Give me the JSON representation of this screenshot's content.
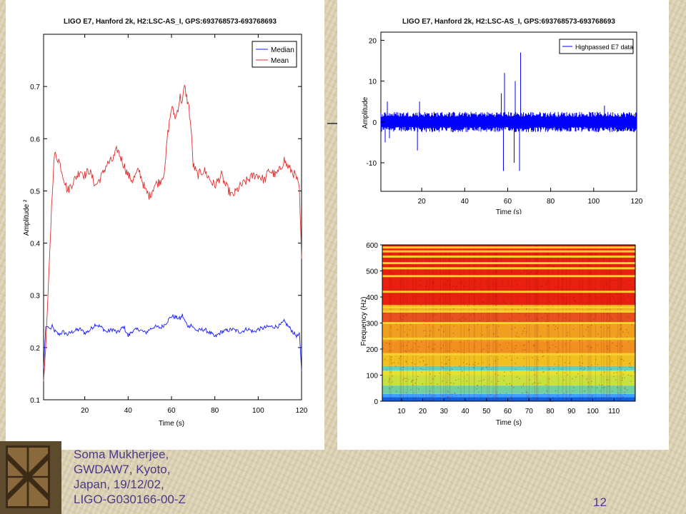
{
  "footer": {
    "lines": [
      "Soma Mukherjee,",
      "GWDAW7, Kyoto,",
      "Japan, 19/12/02,",
      "LIGO-G030166-00-Z"
    ],
    "page_number": "12"
  },
  "colors": {
    "median": "#1a1aff",
    "mean": "#e03030",
    "highpassed": "#0000ff",
    "background": "#ddd1b3",
    "footer_text": "#4a3a8a"
  },
  "chart_data": [
    {
      "type": "line",
      "title": "LIGO E7, Hanford 2k, H2:LSC-AS_I, GPS:693768573-693768693",
      "xlabel": "Time (s)",
      "ylabel": "Amplitude ²",
      "xlim": [
        1,
        120
      ],
      "ylim": [
        0.1,
        0.8
      ],
      "xticks": [
        20,
        40,
        60,
        80,
        100,
        120
      ],
      "yticks": [
        0.1,
        0.2,
        0.3,
        0.4,
        0.5,
        0.6,
        0.7
      ],
      "grid": false,
      "legend_position": "top-right",
      "x": [
        1,
        2,
        3,
        4,
        5,
        6,
        8,
        10,
        12,
        15,
        18,
        20,
        22,
        25,
        28,
        30,
        33,
        35,
        38,
        40,
        42,
        45,
        48,
        50,
        52,
        55,
        57,
        58,
        59,
        60,
        62,
        64,
        65,
        66,
        67,
        68,
        69,
        70,
        72,
        75,
        78,
        80,
        83,
        85,
        88,
        90,
        92,
        95,
        98,
        100,
        103,
        105,
        108,
        110,
        112,
        113,
        115,
        117,
        118,
        119,
        120
      ],
      "series": [
        {
          "name": "Median",
          "values": [
            0.16,
            0.24,
            0.24,
            0.235,
            0.24,
            0.232,
            0.225,
            0.23,
            0.225,
            0.232,
            0.235,
            0.228,
            0.232,
            0.245,
            0.238,
            0.23,
            0.235,
            0.228,
            0.24,
            0.222,
            0.232,
            0.235,
            0.228,
            0.235,
            0.24,
            0.238,
            0.245,
            0.25,
            0.255,
            0.26,
            0.258,
            0.255,
            0.262,
            0.252,
            0.245,
            0.24,
            0.245,
            0.238,
            0.232,
            0.235,
            0.228,
            0.22,
            0.23,
            0.232,
            0.235,
            0.232,
            0.23,
            0.236,
            0.23,
            0.235,
            0.238,
            0.24,
            0.24,
            0.242,
            0.25,
            0.245,
            0.235,
            0.225,
            0.222,
            0.225,
            0.155
          ]
        },
        {
          "name": "Mean",
          "values": [
            0.135,
            0.2,
            0.3,
            0.4,
            0.5,
            0.57,
            0.56,
            0.53,
            0.5,
            0.52,
            0.54,
            0.53,
            0.54,
            0.51,
            0.53,
            0.55,
            0.56,
            0.58,
            0.55,
            0.53,
            0.52,
            0.54,
            0.5,
            0.49,
            0.51,
            0.52,
            0.54,
            0.6,
            0.63,
            0.66,
            0.64,
            0.68,
            0.67,
            0.7,
            0.68,
            0.66,
            0.62,
            0.55,
            0.53,
            0.54,
            0.52,
            0.51,
            0.53,
            0.51,
            0.49,
            0.5,
            0.51,
            0.52,
            0.53,
            0.53,
            0.52,
            0.54,
            0.53,
            0.54,
            0.56,
            0.55,
            0.54,
            0.53,
            0.52,
            0.5,
            0.37
          ]
        }
      ]
    },
    {
      "type": "line",
      "title": "LIGO E7, Hanford 2k, H2:LSC-AS_I, GPS:693768573-693768693",
      "xlabel": "Time (s)",
      "ylabel": "Amplitude",
      "xlim": [
        1,
        120
      ],
      "ylim": [
        -17,
        22
      ],
      "xticks": [
        20,
        40,
        60,
        80,
        100,
        120
      ],
      "yticks": [
        -10,
        0,
        10,
        20
      ],
      "grid": false,
      "legend_position": "top-right",
      "series": [
        {
          "name": "Highpassed E7 data",
          "noise_band": [
            -2.5,
            2.5
          ],
          "spikes": [
            {
              "x": 3,
              "y": -5
            },
            {
              "x": 4,
              "y": 5
            },
            {
              "x": 5,
              "y": -4
            },
            {
              "x": 18,
              "y": -7
            },
            {
              "x": 19,
              "y": 5
            },
            {
              "x": 57,
              "y": 7
            },
            {
              "x": 58,
              "y": -12
            },
            {
              "x": 58.5,
              "y": 12
            },
            {
              "x": 63,
              "y": -10
            },
            {
              "x": 63.5,
              "y": 10
            },
            {
              "x": 65.5,
              "y": -12
            },
            {
              "x": 66,
              "y": 17
            },
            {
              "x": 105,
              "y": 4
            }
          ]
        }
      ]
    },
    {
      "type": "heatmap",
      "xlabel": "Time (s)",
      "ylabel": "Frequency (Hz)",
      "xlim": [
        1,
        120
      ],
      "ylim": [
        0,
        600
      ],
      "xticks": [
        10,
        20,
        30,
        40,
        50,
        60,
        70,
        80,
        90,
        100,
        110
      ],
      "yticks": [
        0,
        100,
        200,
        300,
        400,
        500,
        600
      ],
      "frequency_bands": [
        {
          "from": 0,
          "to": 15,
          "color": "#1060e0"
        },
        {
          "from": 15,
          "to": 28,
          "color": "#40a0ff"
        },
        {
          "from": 28,
          "to": 60,
          "color": "#70d0a0"
        },
        {
          "from": 60,
          "to": 100,
          "color": "#c8e040"
        },
        {
          "from": 100,
          "to": 118,
          "color": "#e8e030"
        },
        {
          "from": 118,
          "to": 135,
          "color": "#60d0c0"
        },
        {
          "from": 135,
          "to": 185,
          "color": "#f0c020"
        },
        {
          "from": 185,
          "to": 230,
          "color": "#f09020"
        },
        {
          "from": 230,
          "to": 300,
          "color": "#f0a020"
        },
        {
          "from": 300,
          "to": 340,
          "color": "#e85020"
        },
        {
          "from": 340,
          "to": 370,
          "color": "#f0b020"
        },
        {
          "from": 370,
          "to": 600,
          "color": "#e82010"
        }
      ],
      "line_frequencies": [
        180,
        240,
        300,
        345,
        360,
        420,
        480,
        510,
        530,
        555,
        575,
        590
      ]
    }
  ]
}
